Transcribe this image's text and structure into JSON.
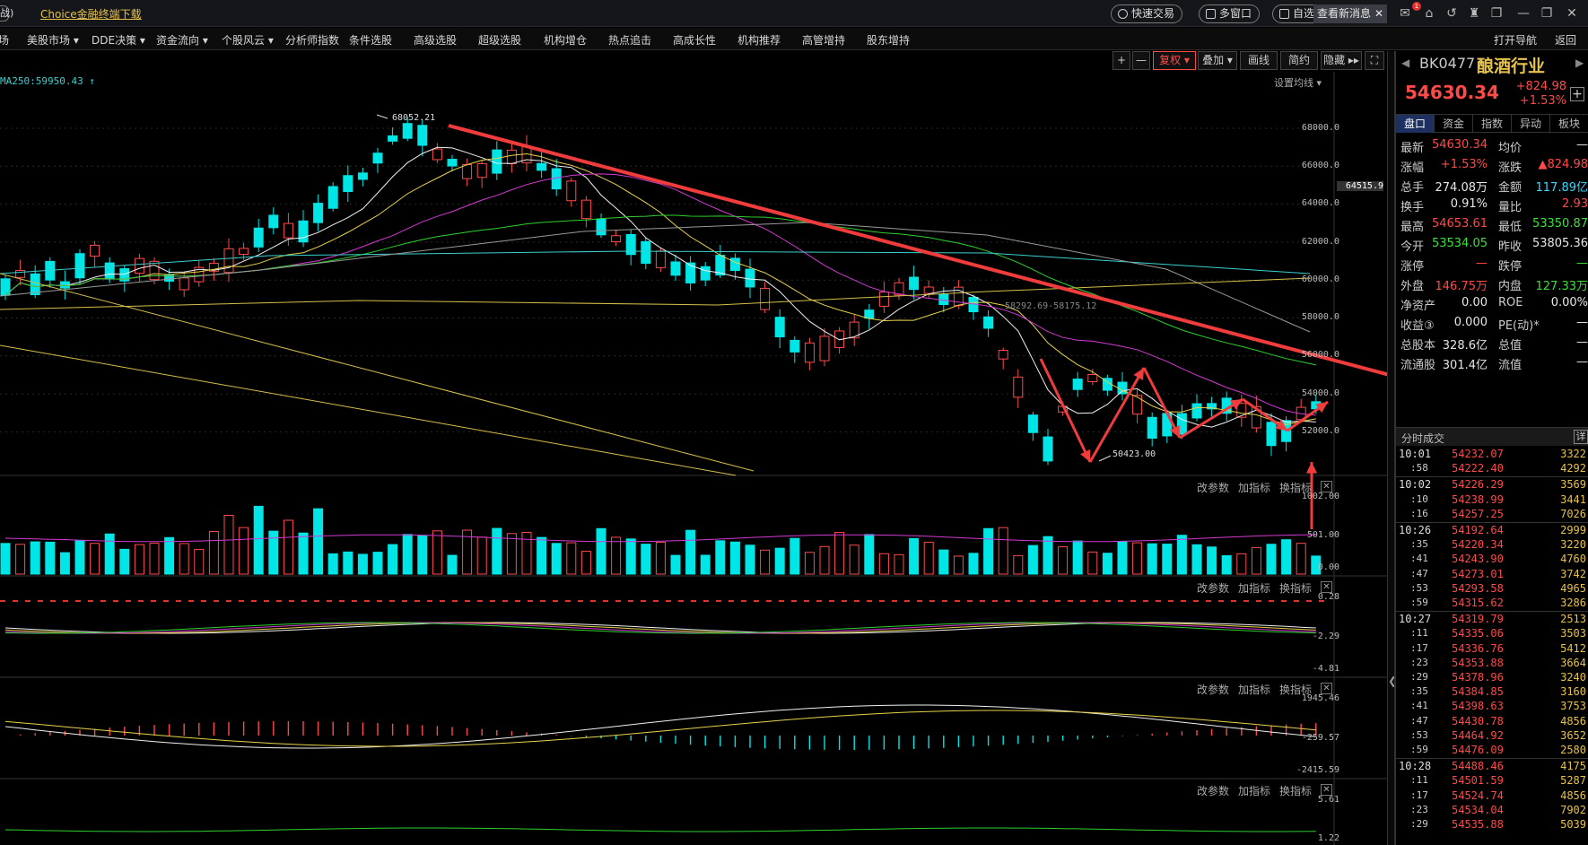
{
  "topbar": {
    "logo_fragment": "战)",
    "choice_link": "Choice金融终端下载",
    "quick_trade": "快速交易",
    "multi_window": "多窗口",
    "custom": "自选",
    "news": "查看新消息",
    "mail_badge": "1"
  },
  "menu": [
    "现场",
    "美股市场 ▾",
    "DDE决策 ▾",
    "资金流向 ▾",
    "个股风云 ▾",
    "分析师指数",
    "条件选股",
    "高级选股",
    "超级选股",
    "机构增仓",
    "热点追击",
    "高成长性",
    "机构推荐",
    "高管增持",
    "股东增持"
  ],
  "menu_right": {
    "nav": "打开导航",
    "back": "返回"
  },
  "chart_tools": {
    "plus": "+",
    "minus": "—",
    "adjust": "复权 ▾",
    "overlay": "叠加 ▾",
    "draw": "画线",
    "simple": "简约",
    "hide": "隐藏 ▸▸",
    "fullscreen": "⛶"
  },
  "ma_legend": "MA250:59950.43 ↑",
  "ma_settings": "设置均线 ▾",
  "price_axis": [
    "68000.0",
    "66000.0",
    "64000.0",
    "62000.0",
    "60000.0",
    "58000.0",
    "56000.0",
    "54000.0",
    "52000.0"
  ],
  "price_axis_current": "64515.9",
  "annotations": {
    "high": "68052.21",
    "low": "50423.00",
    "mid": "58292.69-58175.12"
  },
  "panel_tools": {
    "params": "改参数",
    "add": "加指标",
    "switch": "换指标",
    "close": "✕"
  },
  "volume_axis": [
    "1002.00",
    "501.00",
    "0.00"
  ],
  "ind2_axis": [
    "0.28",
    "-2.29",
    "-4.81"
  ],
  "ind3_axis": [
    "1945.46",
    "-259.57",
    "-2415.59"
  ],
  "ind4_axis": [
    "5.61",
    "1.22"
  ],
  "colors": {
    "up": "#ff4a4a",
    "down": "#00e5e5",
    "accent": "#e6c24a",
    "arrow": "#f03c3c"
  },
  "sidebar": {
    "code": "BK0477",
    "name": "酿酒行业",
    "price": "54630.34",
    "change": "+824.98",
    "change_pct": "+1.53%",
    "tabs": [
      "盘口",
      "资金",
      "指数",
      "异动",
      "板块"
    ],
    "quote": [
      {
        "l1": "最新",
        "v1": "54630.34",
        "c1": "red",
        "l2": "均价",
        "v2": "—",
        "c2": "white"
      },
      {
        "l1": "涨幅",
        "v1": "+1.53%",
        "c1": "red",
        "l2": "涨跌",
        "v2": "▲824.98",
        "c2": "red"
      },
      {
        "l1": "总手",
        "v1": "274.08万",
        "c1": "white",
        "l2": "金额",
        "v2": "117.89亿",
        "c2": "cyan"
      },
      {
        "l1": "换手",
        "v1": "0.91%",
        "c1": "white",
        "l2": "量比",
        "v2": "2.93",
        "c2": "red"
      },
      {
        "l1": "最高",
        "v1": "54653.61",
        "c1": "red",
        "l2": "最低",
        "v2": "53350.87",
        "c2": "green"
      },
      {
        "l1": "今开",
        "v1": "53534.05",
        "c1": "green",
        "l2": "昨收",
        "v2": "53805.36",
        "c2": "white"
      },
      {
        "l1": "涨停",
        "v1": "—",
        "c1": "red",
        "l2": "跌停",
        "v2": "—",
        "c2": "green"
      },
      {
        "l1": "外盘",
        "v1": "146.75万",
        "c1": "red",
        "l2": "内盘",
        "v2": "127.33万",
        "c2": "green"
      },
      {
        "l1": "净资产",
        "v1": "0.00",
        "c1": "white",
        "l2": "ROE",
        "v2": "0.00%",
        "c2": "white"
      },
      {
        "l1": "收益③",
        "v1": "0.000",
        "c1": "white",
        "l2": "PE(动)*",
        "v2": "—",
        "c2": "white"
      },
      {
        "l1": "总股本",
        "v1": "328.6亿",
        "c1": "white",
        "l2": "总值",
        "v2": "—",
        "c2": "white"
      },
      {
        "l1": "流通股",
        "v1": "301.4亿",
        "c1": "white",
        "l2": "流值",
        "v2": "—",
        "c2": "white"
      }
    ],
    "ticks_header": "分时成交",
    "ticks_detail": "详",
    "ticks": [
      {
        "t": "10:01",
        "p": "54232.07",
        "v": "3322",
        "major": true
      },
      {
        "t": ":58",
        "p": "54222.40",
        "v": "4292",
        "major": false
      },
      {
        "t": "10:02",
        "p": "54226.29",
        "v": "3569",
        "major": true
      },
      {
        "t": ":10",
        "p": "54238.99",
        "v": "3441",
        "major": false
      },
      {
        "t": ":16",
        "p": "54257.25",
        "v": "7026",
        "major": false
      },
      {
        "t": "10:26",
        "p": "54192.64",
        "v": "2999",
        "major": true
      },
      {
        "t": ":35",
        "p": "54220.34",
        "v": "3220",
        "major": false
      },
      {
        "t": ":41",
        "p": "54243.90",
        "v": "4760",
        "major": false
      },
      {
        "t": ":47",
        "p": "54273.01",
        "v": "3742",
        "major": false
      },
      {
        "t": ":53",
        "p": "54293.58",
        "v": "4965",
        "major": false
      },
      {
        "t": ":59",
        "p": "54315.62",
        "v": "3286",
        "major": false
      },
      {
        "t": "10:27",
        "p": "54319.79",
        "v": "2513",
        "major": true
      },
      {
        "t": ":11",
        "p": "54335.06",
        "v": "3503",
        "major": false
      },
      {
        "t": ":17",
        "p": "54336.76",
        "v": "5412",
        "major": false
      },
      {
        "t": ":23",
        "p": "54353.88",
        "v": "3664",
        "major": false
      },
      {
        "t": ":29",
        "p": "54378.96",
        "v": "3240",
        "major": false
      },
      {
        "t": ":35",
        "p": "54384.85",
        "v": "3160",
        "major": false
      },
      {
        "t": ":41",
        "p": "54398.63",
        "v": "3753",
        "major": false
      },
      {
        "t": ":47",
        "p": "54430.78",
        "v": "4856",
        "major": false
      },
      {
        "t": ":53",
        "p": "54464.92",
        "v": "3652",
        "major": false
      },
      {
        "t": ":59",
        "p": "54476.09",
        "v": "2580",
        "major": false
      },
      {
        "t": "10:28",
        "p": "54488.46",
        "v": "4175",
        "major": true
      },
      {
        "t": ":11",
        "p": "54501.59",
        "v": "5287",
        "major": false
      },
      {
        "t": ":17",
        "p": "54524.74",
        "v": "4856",
        "major": false
      },
      {
        "t": ":23",
        "p": "54534.04",
        "v": "7902",
        "major": false
      },
      {
        "t": ":29",
        "p": "54535.88",
        "v": "5039",
        "major": false
      }
    ]
  }
}
